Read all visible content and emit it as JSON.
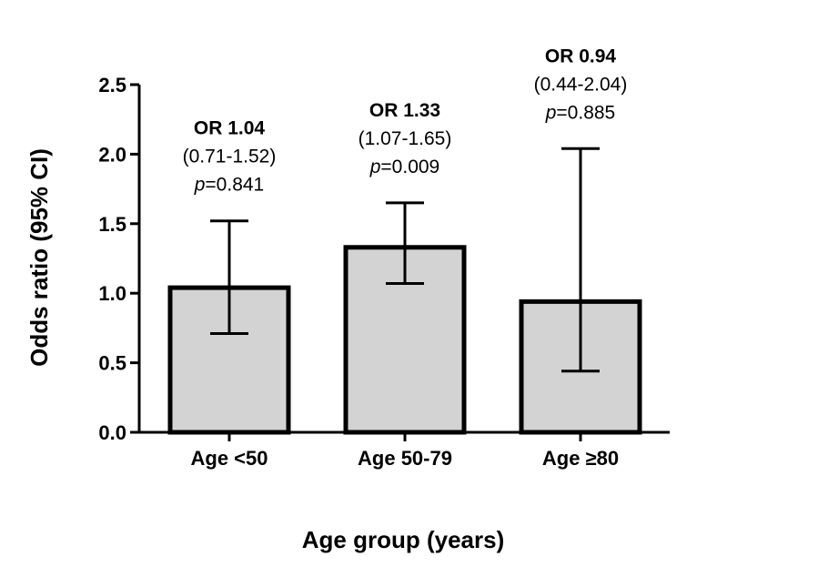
{
  "chart_data": {
    "type": "bar",
    "categories": [
      "Age <50",
      "Age 50-79",
      "Age ≥80"
    ],
    "values": [
      1.04,
      1.33,
      0.94
    ],
    "ci_low": [
      0.71,
      1.07,
      0.44
    ],
    "ci_high": [
      1.52,
      1.65,
      2.04
    ],
    "annotations": [
      {
        "or": "OR 1.04",
        "ci": "(0.71-1.52)",
        "p_prefix": "p",
        "p_value": "=0.841"
      },
      {
        "or": "OR 1.33",
        "ci": "(1.07-1.65)",
        "p_prefix": "p",
        "p_value": "=0.009"
      },
      {
        "or": "OR 0.94",
        "ci": "(0.44-2.04)",
        "p_prefix": "p",
        "p_value": "=0.885"
      }
    ],
    "xlabel": "Age group (years)",
    "ylabel": "Odds ratio (95% CI)",
    "ylim": [
      0,
      2.5
    ],
    "yticks": [
      "0.0",
      "0.5",
      "1.0",
      "1.5",
      "2.0",
      "2.5"
    ],
    "bar_color": "#d3d3d3",
    "grid": false
  }
}
